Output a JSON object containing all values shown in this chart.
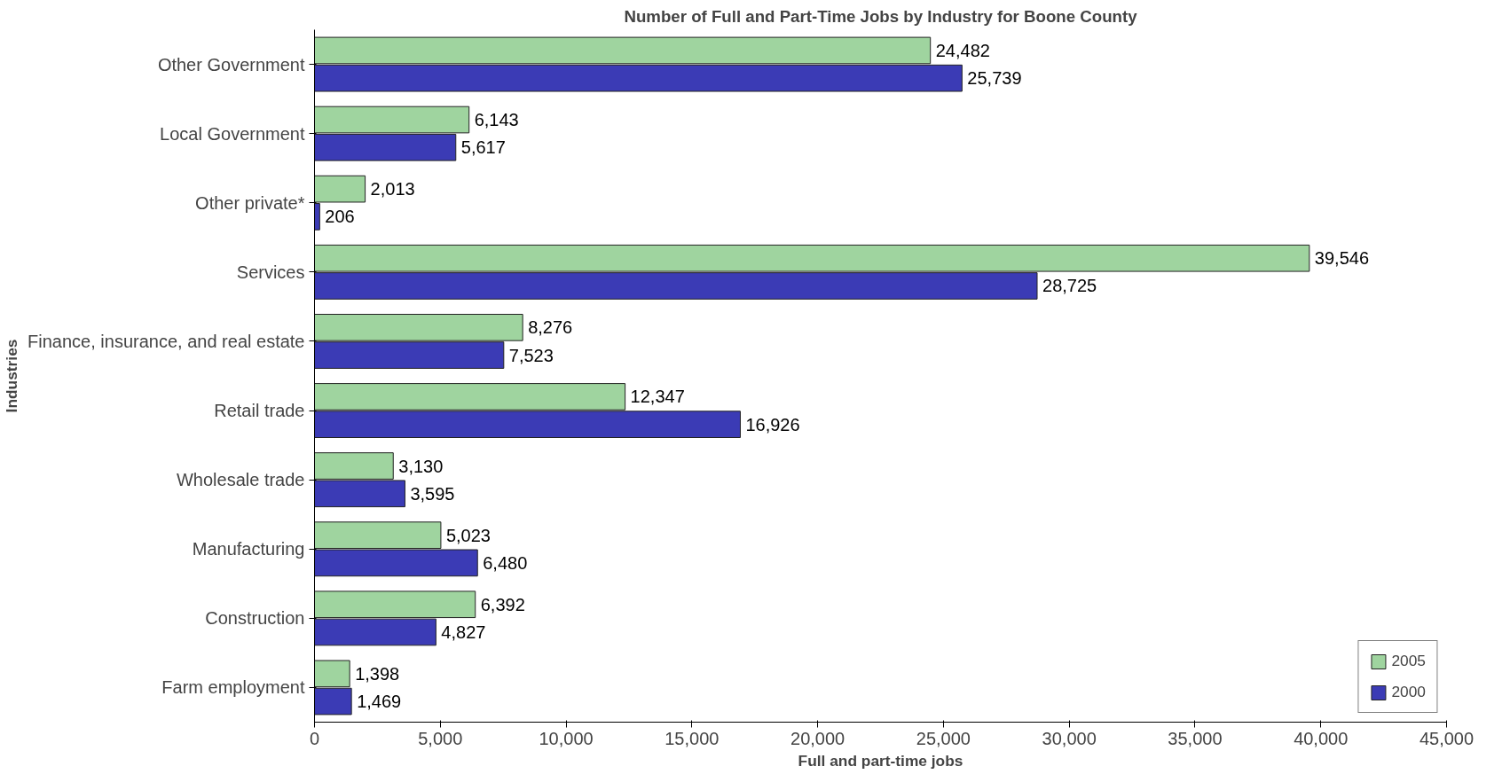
{
  "chart_data": {
    "type": "bar",
    "orientation": "horizontal",
    "title": "Number of Full and Part-Time Jobs by Industry for Boone County",
    "xlabel": "Full and part-time jobs",
    "ylabel": "Industries",
    "categories": [
      "Other Government",
      "Local Government",
      "Other private*",
      "Services",
      "Finance, insurance, and real estate",
      "Retail trade",
      "Wholesale trade",
      "Manufacturing",
      "Construction",
      "Farm employment"
    ],
    "series": [
      {
        "name": "2005",
        "color": "#9fd49f",
        "values": [
          24482,
          6143,
          2013,
          39546,
          8276,
          12347,
          3130,
          5023,
          6392,
          1398
        ],
        "value_labels": [
          "24,482",
          "6,143",
          "2,013",
          "39,546",
          "8,276",
          "12,347",
          "3,130",
          "5,023",
          "6,392",
          "1,398"
        ]
      },
      {
        "name": "2000",
        "color": "#3b3bb5",
        "values": [
          25739,
          5617,
          206,
          28725,
          7523,
          16926,
          3595,
          6480,
          4827,
          1469
        ],
        "value_labels": [
          "25,739",
          "5,617",
          "206",
          "28,725",
          "7,523",
          "16,926",
          "3,595",
          "6,480",
          "4,827",
          "1,469"
        ]
      }
    ],
    "xlim": [
      0,
      45000
    ],
    "xticks": [
      0,
      {
        "value": 5000,
        "label": "5,000"
      },
      {
        "value": 10000,
        "label": "10,000"
      },
      {
        "value": 15000,
        "label": "15,000"
      },
      {
        "value": 20000,
        "label": "20,000"
      },
      {
        "value": 25000,
        "label": "25,000"
      },
      {
        "value": 30000,
        "label": "30,000"
      },
      {
        "value": 35000,
        "label": "35,000"
      },
      {
        "value": 40000,
        "label": "40,000"
      },
      {
        "value": 45000,
        "label": "45,000"
      }
    ],
    "legend": "bottom right",
    "grid": false
  }
}
